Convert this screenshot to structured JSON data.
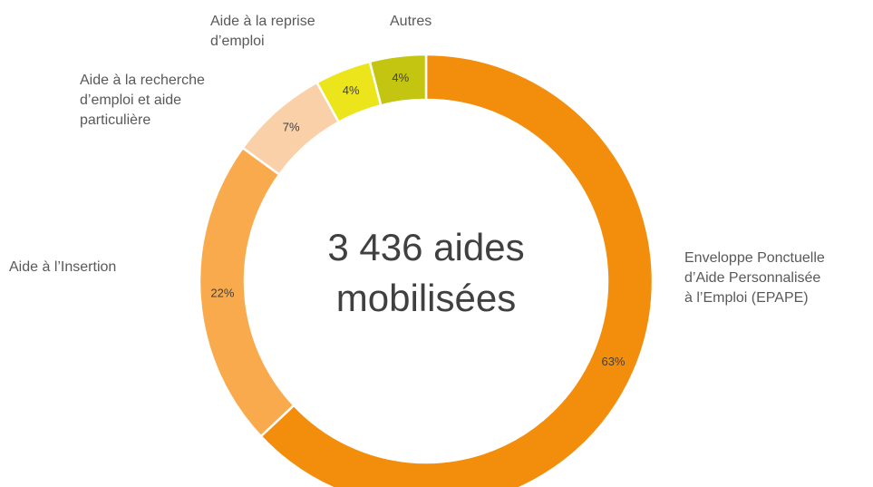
{
  "chart_data": {
    "type": "donut",
    "center_text": "3 436 aides\nmobilisées",
    "categories": [
      "Enveloppe Ponctuelle\nd’Aide Personnalisée\nà l’Emploi  (EPAPE)",
      "Aide à l’Insertion",
      "Aide à la recherche\nd’emploi  et aide\nparticulière",
      "Aide à la reprise\nd’emploi",
      "Autres"
    ],
    "values": [
      63,
      22,
      7,
      4,
      4
    ],
    "value_labels": [
      "63%",
      "22%",
      "7%",
      "4%",
      "4%"
    ],
    "colors": [
      "#f28e0c",
      "#f9aa4c",
      "#fad0a8",
      "#ece51c",
      "#c3c511"
    ]
  }
}
